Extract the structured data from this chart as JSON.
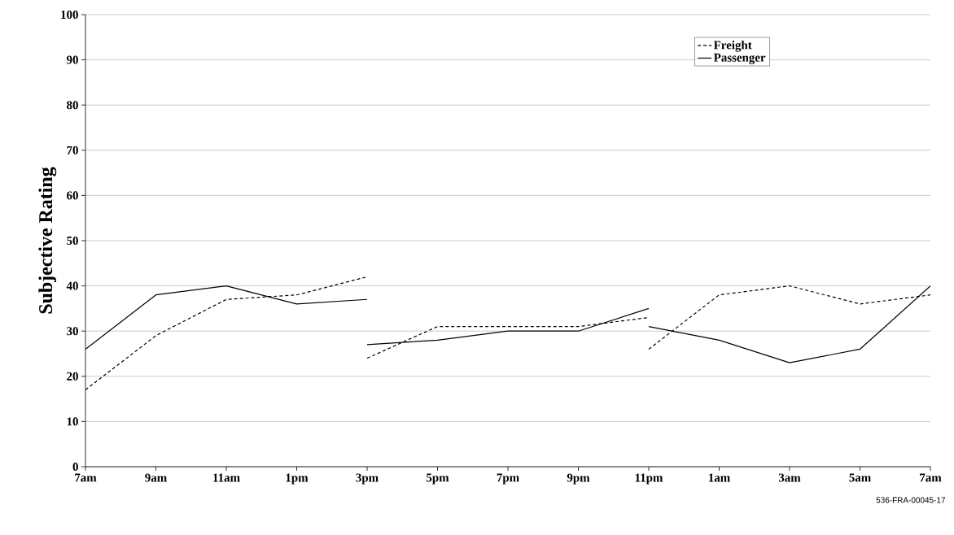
{
  "chart_data": {
    "type": "line",
    "ylabel": "Subjective Rating",
    "categories": [
      "7am",
      "9am",
      "11am",
      "1pm",
      "3pm",
      "5pm",
      "7pm",
      "9pm",
      "11pm",
      "1am",
      "3am",
      "5am",
      "7am"
    ],
    "ylim": [
      0,
      100
    ],
    "yticks": [
      0,
      10,
      20,
      30,
      40,
      50,
      60,
      70,
      80,
      90,
      100
    ],
    "grid": "y",
    "legend": "top right",
    "marker": "none",
    "series": [
      {
        "name": "Freight",
        "color": "#000000",
        "line_style": "dashed",
        "values": [
          17,
          29,
          37,
          38,
          42,
          null,
          null,
          null,
          null,
          null,
          null,
          null,
          null
        ]
      },
      {
        "name": "Passenger",
        "color": "#000000",
        "line_style": "solid",
        "values": [
          26,
          38,
          40,
          36,
          37,
          null,
          null,
          null,
          null,
          null,
          null,
          null,
          null
        ]
      },
      {
        "color": "#000000",
        "line_style": "dashed",
        "values": [
          null,
          null,
          null,
          null,
          24,
          31,
          31,
          31,
          33,
          null,
          null,
          null,
          null
        ]
      },
      {
        "color": "#000000",
        "line_style": "solid",
        "values": [
          null,
          null,
          null,
          null,
          27,
          28,
          30,
          30,
          35,
          null,
          null,
          null,
          null
        ]
      },
      {
        "color": "#000000",
        "line_style": "dashed",
        "values": [
          null,
          null,
          null,
          null,
          null,
          null,
          null,
          null,
          26,
          38,
          40,
          36,
          38
        ]
      },
      {
        "color": "#000000",
        "line_style": "solid",
        "values": [
          null,
          null,
          null,
          null,
          null,
          null,
          null,
          null,
          31,
          28,
          23,
          26,
          40
        ]
      }
    ],
    "annotations": [
      "536-FRA-00045-17"
    ]
  }
}
